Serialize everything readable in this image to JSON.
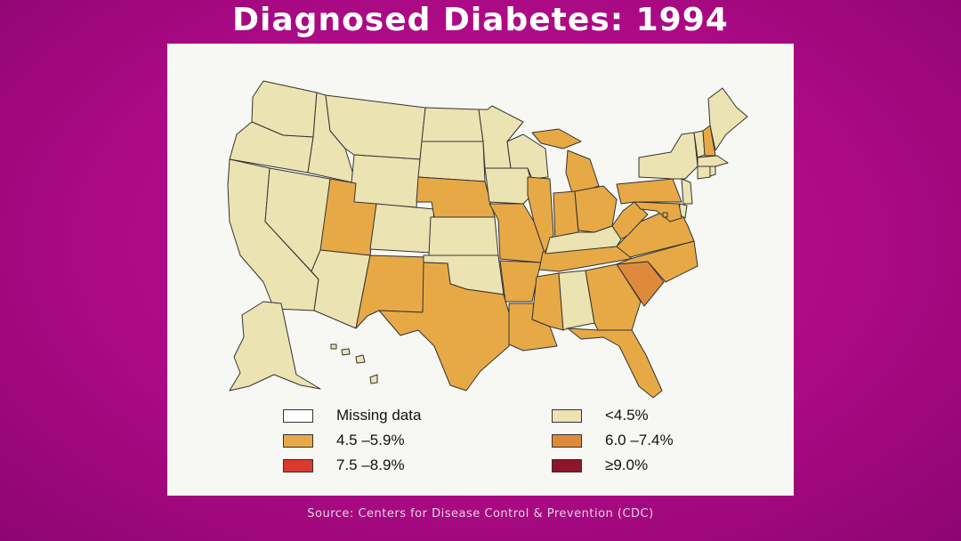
{
  "title": "Diagnosed Diabetes: 1994",
  "source": "Source: Centers for Disease Control & Prevention (CDC)",
  "colors": {
    "missing": "#ffffff",
    "lt_4_5": "#ebe3b1",
    "c4_5_5_9": "#e7a946",
    "c6_0_7_4": "#de8a3d",
    "c7_5_8_9": "#d93a2e",
    "gte_9_0": "#8b1529"
  },
  "legend": [
    {
      "label": "Missing data",
      "color": "#ffffff"
    },
    {
      "label": "<4.5%",
      "color": "#ebe3b1"
    },
    {
      "label": "4.5 –5.9%",
      "color": "#e7a946"
    },
    {
      "label": "6.0 –7.4%",
      "color": "#de8a3d"
    },
    {
      "label": "7.5 –8.9%",
      "color": "#d93a2e"
    },
    {
      "label": "≥9.0%",
      "color": "#8b1529"
    }
  ],
  "map_data": {
    "lt_4_5": [
      "WA",
      "OR",
      "CA",
      "NV",
      "ID",
      "MT",
      "WY",
      "CO",
      "ND",
      "SD",
      "MN",
      "WI",
      "IA",
      "KS",
      "OK",
      "AZ",
      "AL",
      "KY",
      "NY",
      "VT",
      "ME",
      "MA",
      "RI",
      "CT",
      "NJ",
      "DE",
      "AK",
      "HI"
    ],
    "c4_5_5_9": [
      "UT",
      "NM",
      "NE",
      "TX",
      "MO",
      "AR",
      "LA",
      "MS",
      "IL",
      "IN",
      "MI",
      "OH",
      "PA",
      "WV",
      "VA",
      "TN",
      "NC",
      "GA",
      "FL",
      "NH",
      "MD",
      "DC"
    ],
    "c6_0_7_4": [
      "SC"
    ],
    "c7_5_8_9": [],
    "gte_9_0": [],
    "missing": []
  }
}
